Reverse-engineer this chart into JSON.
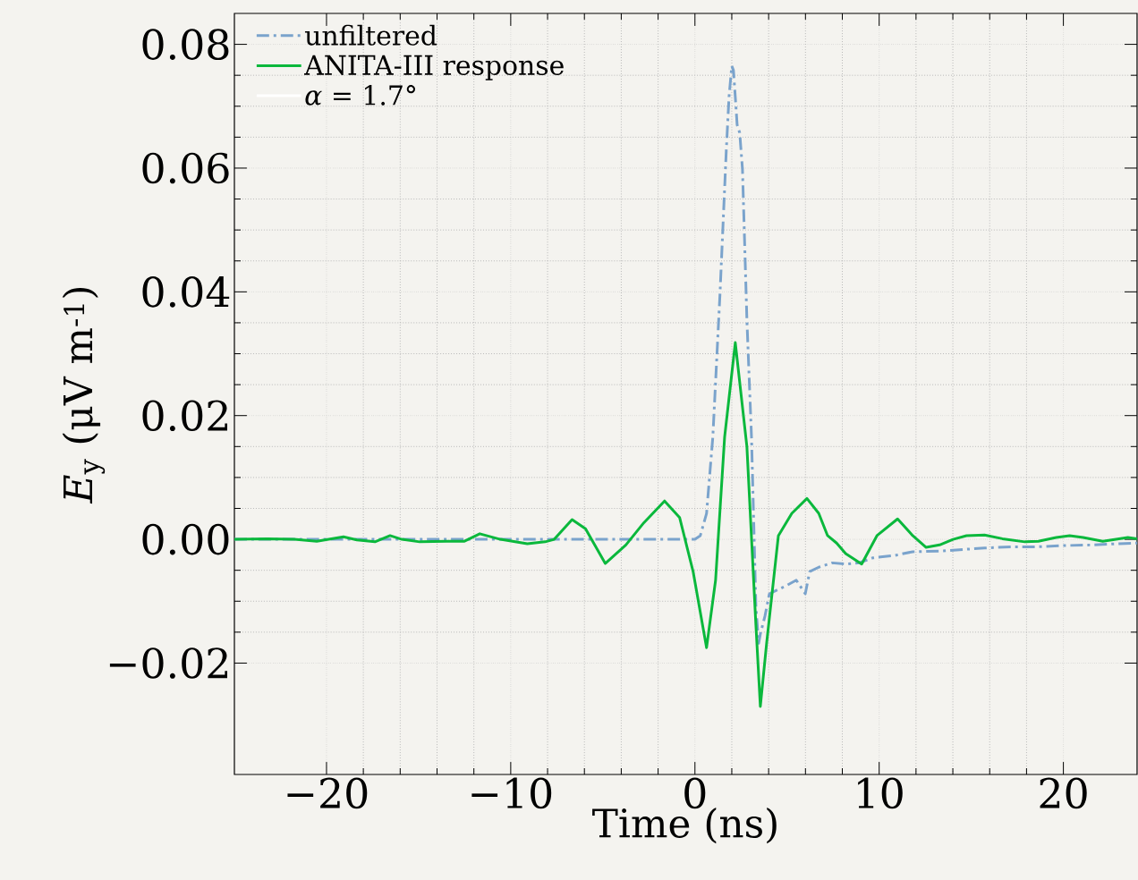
{
  "chart_data": {
    "type": "line",
    "xlabel": "Time (ns)",
    "ylabel": "*E*$_{y}$ (μV m$^{-1}$)",
    "xlim": [
      -25,
      24
    ],
    "ylim": [
      -0.038,
      0.085
    ],
    "xticks": [
      {
        "value": -20,
        "label": "−20"
      },
      {
        "value": -10,
        "label": "−10"
      },
      0,
      10,
      20
    ],
    "yticks": [
      {
        "value": -0.02,
        "label": "−0.02"
      },
      {
        "value": 0,
        "label": "0.00"
      },
      0.02,
      0.04,
      0.06,
      0.08
    ],
    "grid": true,
    "legend": "top left",
    "annotations": [
      "*α* = 1.7°"
    ],
    "series": [
      {
        "name": "unfiltered",
        "color": "#7aa3cc",
        "line_style": "dashdot",
        "x": [
          -25,
          0,
          0.29,
          0.63,
          0.97,
          1.36,
          1.7,
          1.85,
          2.0,
          2.09,
          2.19,
          2.29,
          2.43,
          2.58,
          2.82,
          3.07,
          3.21,
          3.31,
          3.46,
          3.55,
          3.8,
          4.04,
          4.53,
          5.01,
          5.5,
          5.99,
          6.23,
          6.72,
          7.45,
          8.18,
          8.91,
          9.64,
          10.85,
          11.82,
          13.28,
          14.74,
          15.72,
          17.18,
          18.64,
          20.1,
          21.56,
          23.02,
          24
        ],
        "values": [
          0,
          0,
          0.0006,
          0.0042,
          0.0165,
          0.0397,
          0.0628,
          0.0715,
          0.0765,
          0.0758,
          0.0715,
          0.067,
          0.0657,
          0.0598,
          0.0355,
          0.0165,
          0.0006,
          -0.011,
          -0.0168,
          -0.0153,
          -0.0124,
          -0.0088,
          -0.0081,
          -0.0074,
          -0.0066,
          -0.0088,
          -0.0052,
          -0.0045,
          -0.0038,
          -0.004,
          -0.0038,
          -0.003,
          -0.0026,
          -0.002,
          -0.0019,
          -0.0016,
          -0.0014,
          -0.0012,
          -0.0012,
          -0.001,
          -0.0009,
          -0.0007,
          -0.0006
        ]
      },
      {
        "name": "ANITA-III response",
        "color": "#0ab83c",
        "line_style": "solid",
        "x": [
          -25,
          -23.21,
          -21.75,
          -20.53,
          -19.08,
          -18.35,
          -17.37,
          -16.55,
          -15.91,
          -14.94,
          -13.48,
          -12.51,
          -11.68,
          -10.56,
          -9.1,
          -8.13,
          -7.64,
          -6.67,
          -5.94,
          -4.87,
          -3.75,
          -2.77,
          -1.65,
          -0.83,
          -0.1,
          0.63,
          1.12,
          1.61,
          2.19,
          2.82,
          3.31,
          3.55,
          3.89,
          4.53,
          5.26,
          6.08,
          6.72,
          7.2,
          7.69,
          8.18,
          9.05,
          9.88,
          11.0,
          11.82,
          12.55,
          13.28,
          14.01,
          14.74,
          15.72,
          16.69,
          17.91,
          18.64,
          19.61,
          20.34,
          21.07,
          22.14,
          23.5,
          24
        ],
        "values": [
          0,
          0.0001,
          0,
          -0.0003,
          0.0004,
          -0.0001,
          -0.0004,
          0.0006,
          0,
          -0.0004,
          -0.0003,
          -0.0003,
          0.0009,
          0,
          -0.0007,
          -0.0004,
          0,
          0.0032,
          0.0017,
          -0.0039,
          -0.0009,
          0.0027,
          0.0062,
          0.0035,
          -0.0052,
          -0.0175,
          -0.0066,
          0.0165,
          0.0318,
          0.015,
          -0.0139,
          -0.027,
          -0.0168,
          0.0006,
          0.0042,
          0.0066,
          0.0042,
          0.0006,
          -0.0006,
          -0.0023,
          -0.004,
          0.0006,
          0.0033,
          0.0006,
          -0.0013,
          -0.0009,
          0,
          0.0006,
          0.0007,
          0.0001,
          -0.0004,
          -0.0003,
          0.0003,
          0.0006,
          0.0003,
          -0.0003,
          0.0003,
          0.0001
        ]
      }
    ]
  }
}
